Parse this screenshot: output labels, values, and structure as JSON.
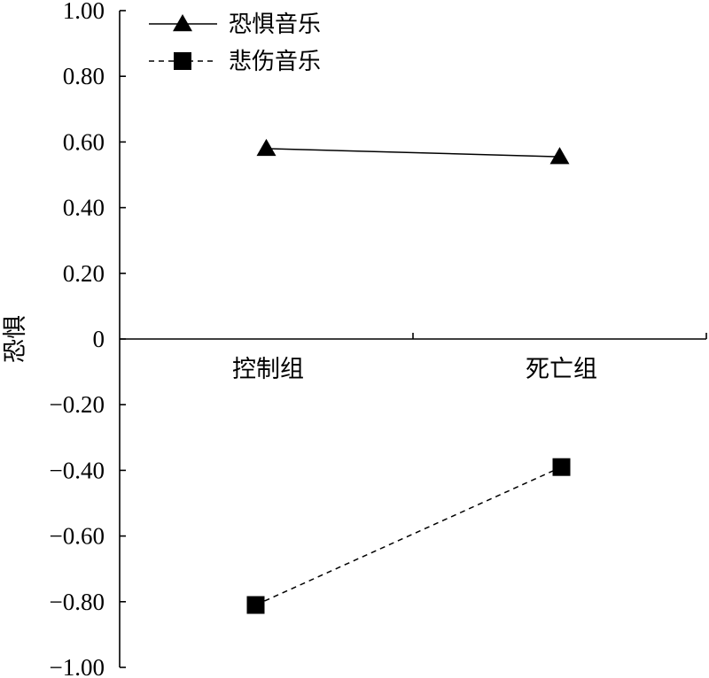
{
  "chart_data": {
    "type": "line",
    "categories": [
      "控制组",
      "死亡组"
    ],
    "ylabel": "恐惧",
    "ylim": [
      -1.0,
      1.0
    ],
    "yticks": [
      "1.00",
      "0.80",
      "0.60",
      "0.40",
      "0.20",
      "0",
      "−0.20",
      "−0.40",
      "−0.60",
      "−0.80",
      "−1.00"
    ],
    "ytick_values": [
      1.0,
      0.8,
      0.6,
      0.4,
      0.2,
      0,
      -0.2,
      -0.4,
      -0.6,
      -0.8,
      -1.0
    ],
    "series": [
      {
        "name": "恐惧音乐",
        "values": [
          0.58,
          0.555
        ],
        "marker": "triangle",
        "line": "solid",
        "color": "#000000"
      },
      {
        "name": "悲伤音乐",
        "values": [
          -0.81,
          -0.39
        ],
        "marker": "square",
        "line": "dashed",
        "color": "#000000"
      }
    ],
    "legend_position": "top-left",
    "grid": false
  }
}
